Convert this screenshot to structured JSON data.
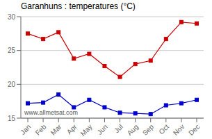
{
  "chart_data": {
    "type": "line",
    "title": "Garanhuns : temperatures (°C)",
    "categories": [
      "Jan",
      "Feb",
      "Mar",
      "Apr",
      "May",
      "Jun",
      "Jul",
      "Aug",
      "Sep",
      "Oct",
      "Nov",
      "Dec"
    ],
    "series": [
      {
        "color": "#cc0000",
        "marker": "square",
        "values": [
          27.5,
          26.7,
          27.7,
          23.8,
          24.5,
          22.7,
          21.1,
          23.0,
          23.5,
          26.7,
          29.2,
          29.0
        ]
      },
      {
        "color": "#0000cc",
        "marker": "square",
        "values": [
          17.2,
          17.3,
          18.5,
          16.6,
          17.7,
          16.6,
          15.8,
          15.7,
          15.6,
          16.9,
          17.2,
          17.7
        ]
      }
    ],
    "ylim": [
      15,
      30
    ],
    "yticks": [
      15,
      20,
      25,
      30
    ],
    "grid": "y",
    "annotations": [
      "www.allmetsat.com"
    ]
  }
}
